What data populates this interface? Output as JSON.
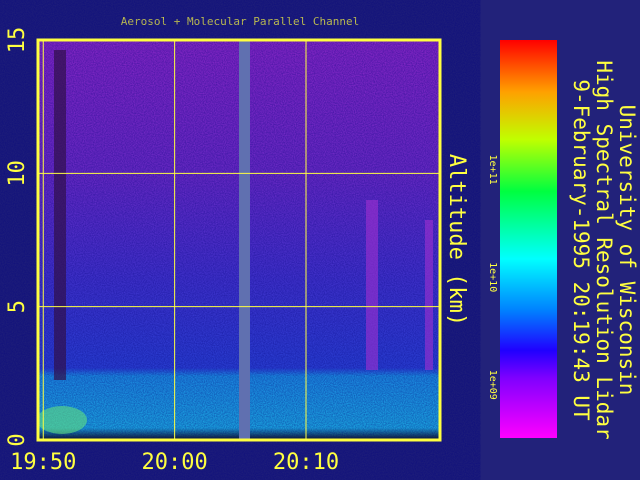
{
  "chart_data": {
    "type": "heatmap",
    "title": "Aerosol + Molecular Parallel Channel",
    "annotations": [
      "University of Wisconsin",
      "High Spectral Resolution Lidar",
      "9-February-1995 20:19:43 UT"
    ],
    "ylabel": "Altitude (km)",
    "xlim": [
      -0.4,
      30.2
    ],
    "xticks": [
      {
        "value": 0,
        "label": "19:50"
      },
      {
        "value": 10,
        "label": "20:00"
      },
      {
        "value": 20,
        "label": "20:10"
      }
    ],
    "ylim": [
      0,
      15
    ],
    "yticks": [
      0,
      5,
      10,
      15
    ],
    "grid": true,
    "colorbar": {
      "log": true,
      "zlim": [
        320000000,
        1600000000000
      ],
      "zticks": [
        {
          "value": 1000000000,
          "label": "1e+09"
        },
        {
          "value": 10000000000,
          "label": "1e+10"
        },
        {
          "value": 100000000000,
          "label": "1e+11"
        }
      ]
    }
  }
}
